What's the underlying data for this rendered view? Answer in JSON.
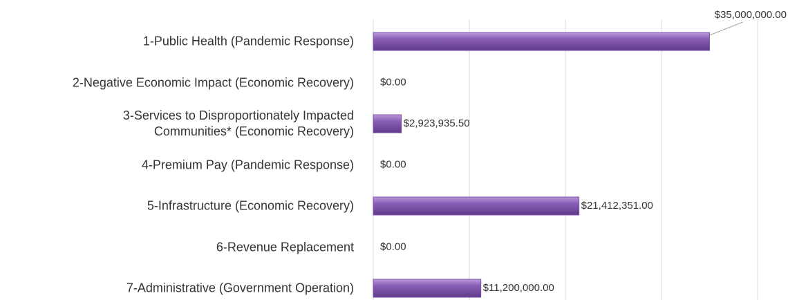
{
  "chart_data": {
    "type": "barh",
    "categories": [
      "1-Public Health (Pandemic Response)",
      "2-Negative Economic Impact (Economic Recovery)",
      "3-Services to Disproportionately Impacted\nCommunities* (Economic Recovery)",
      "4-Premium Pay (Pandemic Response)",
      "5-Infrastructure (Economic Recovery)",
      "6-Revenue Replacement",
      "7-Administrative (Government Operation)"
    ],
    "values": [
      35000000,
      0,
      2923935.5,
      0,
      21412351,
      0,
      11200000
    ],
    "value_labels": [
      "$35,000,000.00",
      "$0.00",
      "$2,923,935.50",
      "$0.00",
      "$21,412,351.00",
      "$0.00",
      "$11,200,000.00"
    ],
    "color": "#7d52ab",
    "xlim": [
      0,
      40000000
    ],
    "xticks": [
      0,
      10000000,
      20000000,
      30000000,
      40000000
    ],
    "grid": true
  }
}
